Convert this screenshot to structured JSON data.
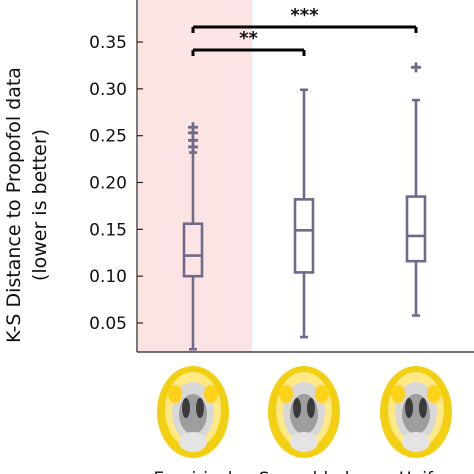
{
  "chart_data": {
    "type": "boxplot",
    "ylabel_line1": "K-S Distance to Propofol data",
    "ylabel_line2": "(lower is better)",
    "ylim": [
      0.02,
      0.39
    ],
    "yticks": [
      0.05,
      0.1,
      0.15,
      0.2,
      0.25,
      0.3,
      0.35
    ],
    "ytick_labels": [
      "0.05",
      "0.10",
      "0.15",
      "0.20",
      "0.25",
      "0.30",
      "0.35"
    ],
    "categories": [
      "Empirical",
      "Scrambled",
      "Uniform"
    ],
    "category_labels_visible": [
      "Empirical",
      "Scrambled",
      "Unif"
    ],
    "highlighted_category": "Empirical",
    "box_color": "#6e6a8a",
    "highlight_color": "#fde4e4",
    "boxes": [
      {
        "category": "Empirical",
        "whisker_low": 0.022,
        "q1": 0.1,
        "median": 0.122,
        "q3": 0.156,
        "whisker_high": 0.232,
        "outliers": [
          0.238,
          0.245,
          0.253,
          0.259
        ]
      },
      {
        "category": "Scrambled",
        "whisker_low": 0.035,
        "q1": 0.104,
        "median": 0.149,
        "q3": 0.182,
        "whisker_high": 0.299,
        "outliers": []
      },
      {
        "category": "Uniform",
        "whisker_low": 0.058,
        "q1": 0.116,
        "median": 0.143,
        "q3": 0.185,
        "whisker_high": 0.288,
        "outliers": [
          0.323
        ]
      }
    ],
    "significance": [
      {
        "from": "Empirical",
        "to": "Scrambled",
        "label": "**"
      },
      {
        "from": "Empirical",
        "to": "Uniform",
        "label": "***"
      }
    ],
    "brain_thumbnails": [
      "brain-map-empirical",
      "brain-map-scrambled",
      "brain-map-uniform"
    ]
  }
}
